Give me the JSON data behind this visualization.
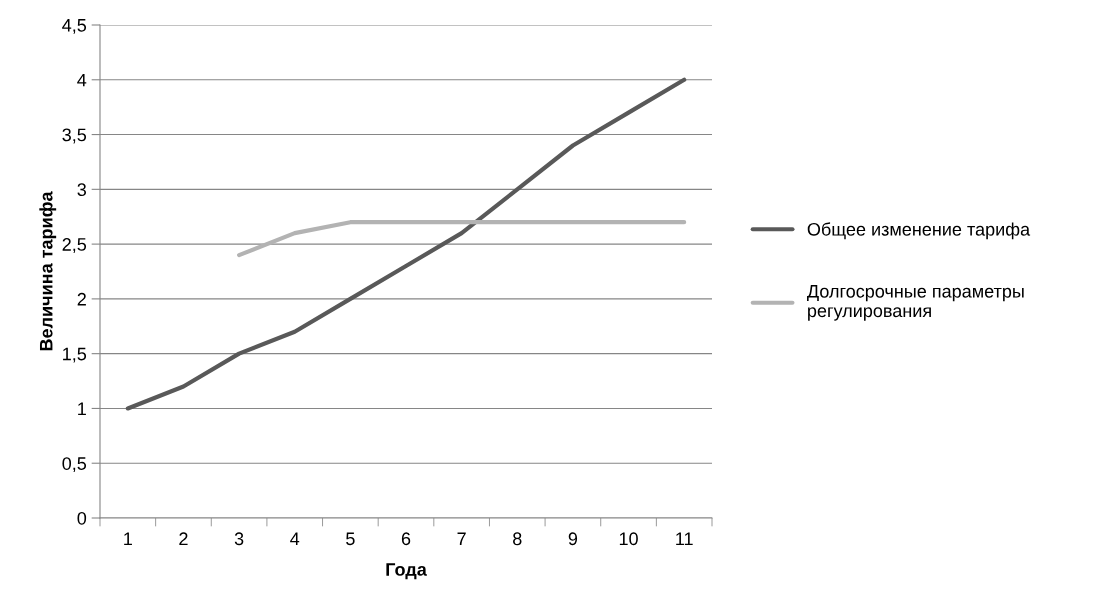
{
  "chart_data": {
    "type": "line",
    "xlabel": "Года",
    "ylabel": "Величина тарифа",
    "categories": [
      "1",
      "2",
      "3",
      "4",
      "5",
      "6",
      "7",
      "8",
      "9",
      "10",
      "11"
    ],
    "series": [
      {
        "name": "Общее изменение тарифа",
        "color": "#595959",
        "values": [
          1,
          1.2,
          1.5,
          1.7,
          2.0,
          2.3,
          2.6,
          3.0,
          3.4,
          3.7,
          4.0
        ]
      },
      {
        "name": "Долгосрочные параметры регулирования",
        "color": "#b3b3b3",
        "values": [
          null,
          null,
          2.4,
          2.6,
          2.7,
          2.7,
          2.7,
          2.7,
          2.7,
          2.7,
          2.7
        ]
      }
    ],
    "ylim": [
      0,
      4.5
    ],
    "yticks": [
      0,
      {
        "value": 0.5,
        "label": "0,5"
      },
      1,
      {
        "value": 1.5,
        "label": "1,5"
      },
      2,
      {
        "value": 2.5,
        "label": "2,5"
      },
      3,
      {
        "value": 3.5,
        "label": "3,5"
      },
      4,
      {
        "value": 4.5,
        "label": "4,5"
      }
    ],
    "grid": "y",
    "legend": "right",
    "marker": "none",
    "line_style": "solid"
  }
}
